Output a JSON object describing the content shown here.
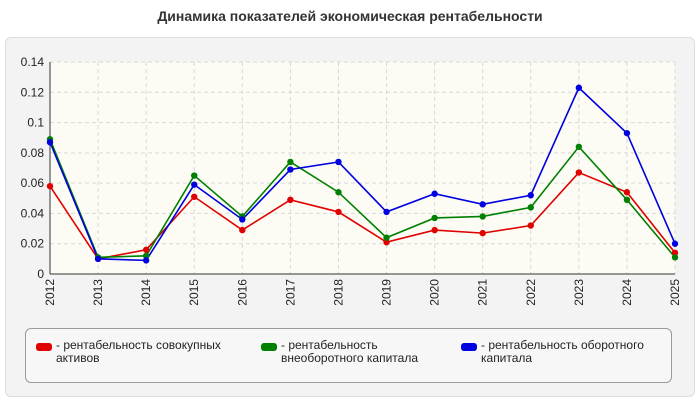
{
  "chart_data": {
    "type": "line",
    "title": "Динамика показателей экономическая рентабельности",
    "categories": [
      "2012",
      "2013",
      "2014",
      "2015",
      "2016",
      "2017",
      "2018",
      "2019",
      "2020",
      "2021",
      "2022",
      "2023",
      "2024",
      "2025"
    ],
    "ylim": [
      0,
      0.14
    ],
    "yticks": [
      "0",
      "0.02",
      "0.04",
      "0.06",
      "0.08",
      "0.1",
      "0.12",
      "0.14"
    ],
    "grid": true,
    "legend_position": "bottom",
    "series": [
      {
        "name": "- рентабельность совокупных активов",
        "color": "#e00000",
        "values": [
          0.058,
          0.01,
          0.016,
          0.051,
          0.029,
          0.049,
          0.041,
          0.021,
          0.029,
          0.027,
          0.032,
          0.067,
          0.054,
          0.014
        ]
      },
      {
        "name": "- рентабельность внеоборотного капитала",
        "color": "#008000",
        "values": [
          0.089,
          0.011,
          0.012,
          0.065,
          0.038,
          0.074,
          0.054,
          0.024,
          0.037,
          0.038,
          0.044,
          0.084,
          0.049,
          0.011
        ]
      },
      {
        "name": "- рентабельность оборотного капитала",
        "color": "#0000e0",
        "values": [
          0.087,
          0.01,
          0.009,
          0.059,
          0.036,
          0.069,
          0.074,
          0.041,
          0.053,
          0.046,
          0.052,
          0.123,
          0.093,
          0.02
        ]
      }
    ]
  }
}
